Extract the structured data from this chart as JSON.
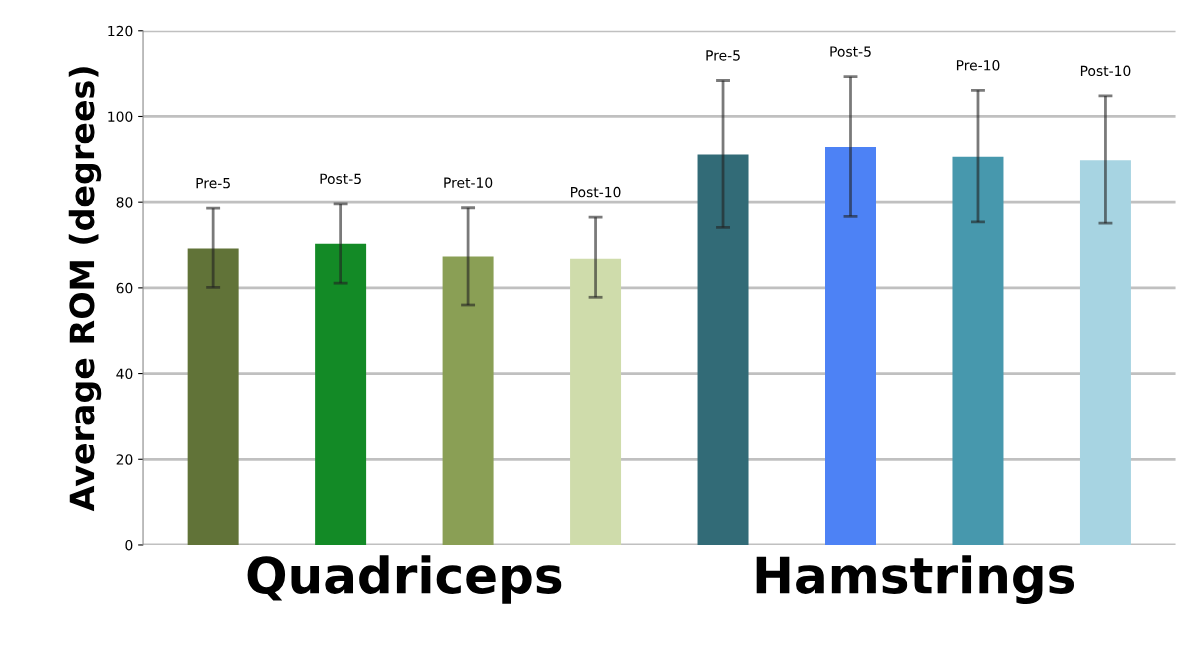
{
  "chart_data": {
    "type": "bar",
    "categories": [
      "Pre-5",
      "Post-5",
      "Pret-10",
      "Post-10",
      "Pre-5",
      "Post-5",
      "Pre-10",
      "Post-10"
    ],
    "values": [
      69.2,
      70.3,
      67.3,
      66.8,
      91.1,
      92.9,
      90.6,
      89.8
    ],
    "colors": [
      "#617338",
      "#138a26",
      "#8a9f55",
      "#cfdcab",
      "#326b77",
      "#4d82f5",
      "#4798ad",
      "#a7d4e2"
    ],
    "errors": [
      [
        60.1,
        78.6
      ],
      [
        61.1,
        79.6
      ],
      [
        56.0,
        78.7
      ],
      [
        57.8,
        76.5
      ],
      [
        74.1,
        108.4
      ],
      [
        76.7,
        109.3
      ],
      [
        75.4,
        106.1
      ],
      [
        75.1,
        104.8
      ]
    ],
    "ylabel": "Average ROM (degrees)",
    "annotations": [
      "Quadriceps",
      "Hamstrings"
    ],
    "ylim": [
      0,
      120
    ],
    "yticks": [
      0,
      20,
      40,
      60,
      80,
      100,
      120
    ],
    "grid": "y"
  }
}
